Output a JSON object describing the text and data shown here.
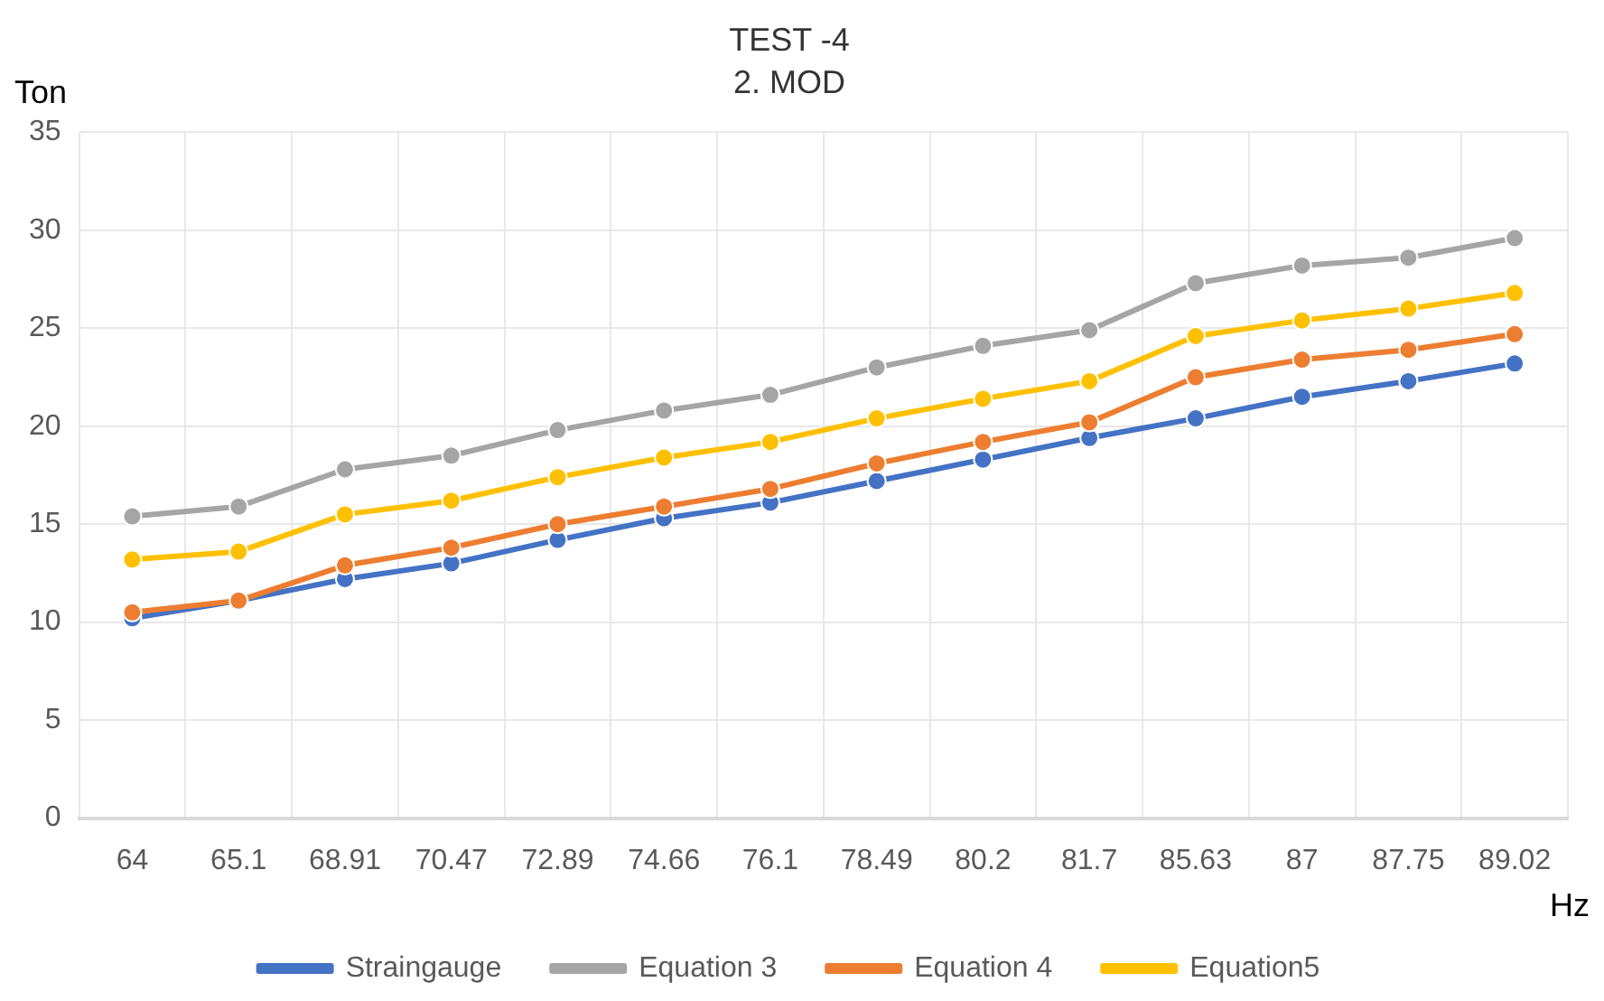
{
  "chart_data": {
    "type": "line",
    "title": "TEST -4",
    "subtitle": "2. MOD",
    "xlabel": "Hz",
    "ylabel": "Ton",
    "categories": [
      "64",
      "65.1",
      "68.91",
      "70.47",
      "72.89",
      "74.66",
      "76.1",
      "78.49",
      "80.2",
      "81.7",
      "85.63",
      "87",
      "87.75",
      "89.02"
    ],
    "series": [
      {
        "name": "Straingauge",
        "color": "#4472c4",
        "values": [
          10.2,
          11.1,
          12.2,
          13.0,
          14.2,
          15.3,
          16.1,
          17.2,
          18.3,
          19.4,
          20.4,
          21.5,
          22.3,
          23.2
        ]
      },
      {
        "name": "Equation 3",
        "color": "#a5a5a5",
        "values": [
          15.4,
          15.9,
          17.8,
          18.5,
          19.8,
          20.8,
          21.6,
          23.0,
          24.1,
          24.9,
          27.3,
          28.2,
          28.6,
          29.6
        ]
      },
      {
        "name": "Equation 4",
        "color": "#ed7d31",
        "values": [
          10.5,
          11.1,
          12.9,
          13.8,
          15.0,
          15.9,
          16.8,
          18.1,
          19.2,
          20.2,
          22.5,
          23.4,
          23.9,
          24.7
        ]
      },
      {
        "name": "Equation5",
        "color": "#ffc000",
        "values": [
          13.2,
          13.6,
          15.5,
          16.2,
          17.4,
          18.4,
          19.2,
          20.4,
          21.4,
          22.3,
          24.6,
          25.4,
          26.0,
          26.8
        ]
      }
    ],
    "ylim": [
      0,
      35
    ],
    "yticks": [
      0,
      5,
      10,
      15,
      20,
      25,
      30,
      35
    ],
    "grid": true,
    "legend": "bottom",
    "marker": "circle",
    "line_style": "solid"
  }
}
